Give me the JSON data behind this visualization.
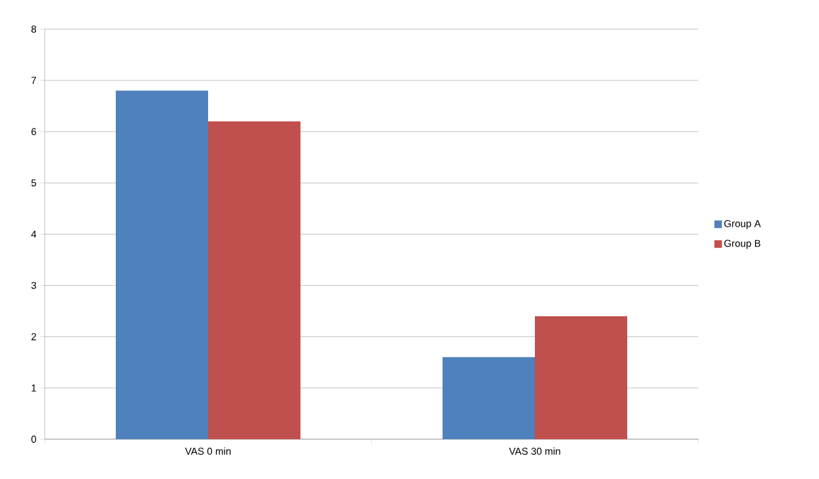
{
  "chart_data": {
    "type": "bar",
    "categories": [
      "VAS 0 min",
      "VAS 30 min"
    ],
    "series": [
      {
        "name": "Group A",
        "color": "#4f81bd",
        "values": [
          6.8,
          1.6
        ]
      },
      {
        "name": "Group B",
        "color": "#c0504d",
        "values": [
          6.2,
          2.4
        ]
      }
    ],
    "ylim": [
      0,
      8
    ],
    "yticks": [
      0,
      1,
      2,
      3,
      4,
      5,
      6,
      7,
      8
    ],
    "grid": "y",
    "legend": "right"
  }
}
